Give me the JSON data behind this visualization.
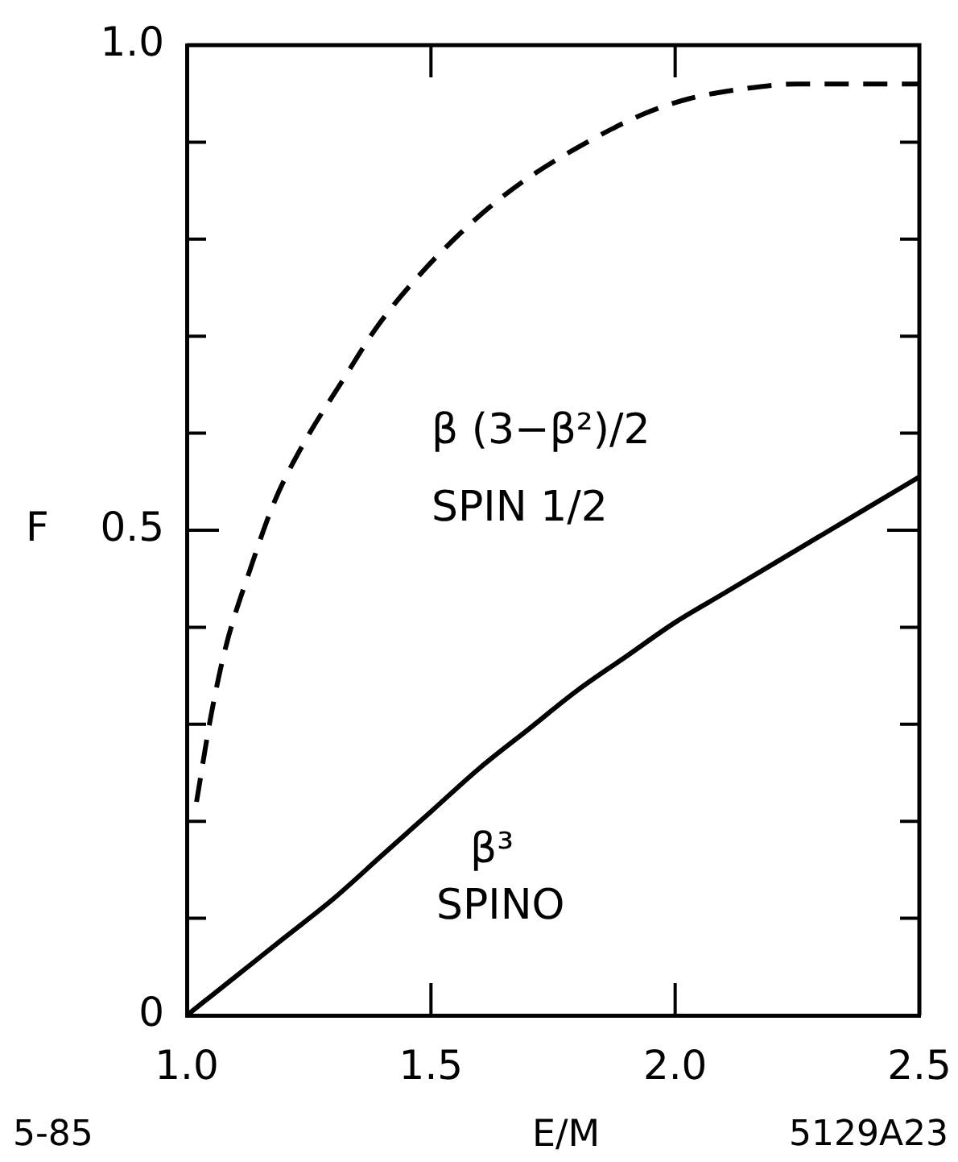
{
  "chart_data": {
    "type": "line",
    "xlabel": "E/M",
    "ylabel": "F",
    "annotations": [
      "β (3−β²)/2",
      "SPIN 1/2",
      "β³",
      "SPINO",
      "5-85",
      "5129A23"
    ],
    "xlim": [
      1,
      2.5
    ],
    "xticks": [
      {
        "value": 1,
        "label": "1.0"
      },
      1.5,
      {
        "value": 2,
        "label": "2.0"
      },
      2.5
    ],
    "ylim": [
      0,
      1
    ],
    "yticks": [
      0,
      {
        "value": 0.1,
        "label": null
      },
      {
        "value": 0.2,
        "label": null
      },
      {
        "value": 0.3,
        "label": null
      },
      {
        "value": 0.4,
        "label": null
      },
      0.5,
      {
        "value": 0.6,
        "label": null
      },
      {
        "value": 0.7,
        "label": null
      },
      {
        "value": 0.8,
        "label": null
      },
      {
        "value": 0.9,
        "label": null
      },
      {
        "value": 1,
        "label": "1.0"
      }
    ],
    "grid": false,
    "legend": false,
    "marker": "none",
    "series": [
      {
        "color": "#000000",
        "line_style": "dashed",
        "x": [
          1.02,
          1.05,
          1.08,
          1.13,
          1.18,
          1.24,
          1.32,
          1.39,
          1.48,
          1.59,
          1.69,
          1.82,
          1.94,
          2.03,
          2.14,
          2.25,
          2.36,
          2.5
        ],
        "values": [
          0.22,
          0.31,
          0.38,
          0.46,
          0.53,
          0.59,
          0.655,
          0.71,
          0.765,
          0.82,
          0.86,
          0.9,
          0.93,
          0.945,
          0.955,
          0.96,
          0.96,
          0.96
        ]
      },
      {
        "color": "#000000",
        "line_style": "solid",
        "x": [
          1.0,
          1.1,
          1.2,
          1.3,
          1.4,
          1.5,
          1.6,
          1.7,
          1.8,
          1.9,
          2.0,
          2.1,
          2.2,
          2.3,
          2.4,
          2.5
        ],
        "values": [
          0,
          0.04,
          0.08,
          0.12,
          0.165,
          0.21,
          0.255,
          0.295,
          0.335,
          0.37,
          0.405,
          0.435,
          0.465,
          0.495,
          0.525,
          0.555
        ]
      }
    ]
  }
}
